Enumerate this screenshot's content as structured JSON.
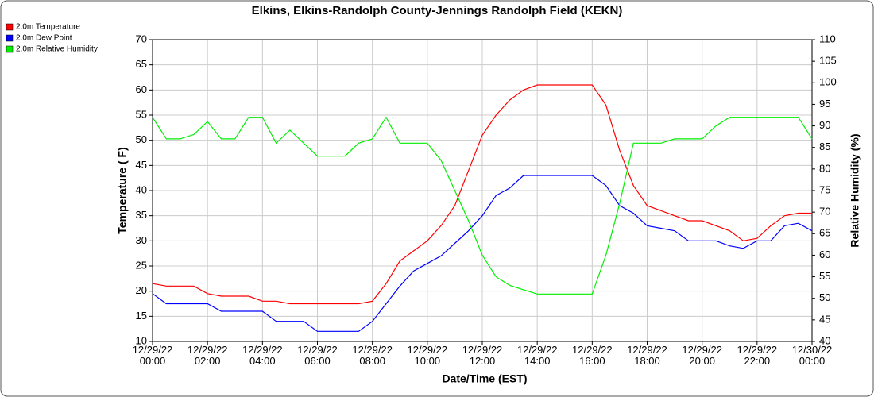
{
  "chart_data": {
    "type": "line",
    "title": "Elkins, Elkins-Randolph County-Jennings Randolph Field (KEKN)",
    "x_label": "Date/Time (EST)",
    "y_label": "Temperature ( F)",
    "y2_label": "Relative Humidity (%)",
    "grid": true,
    "legend": "top-left",
    "xlim": [
      0,
      24
    ],
    "xticks": [
      {
        "value": 0,
        "label": "12/29/22\n00:00"
      },
      {
        "value": 2,
        "label": "12/29/22\n02:00"
      },
      {
        "value": 4,
        "label": "12/29/22\n04:00"
      },
      {
        "value": 6,
        "label": "12/29/22\n06:00"
      },
      {
        "value": 8,
        "label": "12/29/22\n08:00"
      },
      {
        "value": 10,
        "label": "12/29/22\n10:00"
      },
      {
        "value": 12,
        "label": "12/29/22\n12:00"
      },
      {
        "value": 14,
        "label": "12/29/22\n14:00"
      },
      {
        "value": 16,
        "label": "12/29/22\n16:00"
      },
      {
        "value": 18,
        "label": "12/29/22\n18:00"
      },
      {
        "value": 20,
        "label": "12/29/22\n20:00"
      },
      {
        "value": 22,
        "label": "12/29/22\n22:00"
      },
      {
        "value": 24,
        "label": "12/30/22\n00:00"
      }
    ],
    "ylim": [
      10,
      70
    ],
    "yticks": [
      10,
      15,
      20,
      25,
      30,
      35,
      40,
      45,
      50,
      55,
      60,
      65,
      70
    ],
    "y2lim": [
      40,
      110
    ],
    "y2ticks": [
      40,
      45,
      50,
      55,
      60,
      65,
      70,
      75,
      80,
      85,
      90,
      95,
      100,
      105,
      110
    ],
    "x": [
      0,
      0.5,
      1,
      1.5,
      2,
      2.5,
      3,
      3.5,
      4,
      4.5,
      5,
      5.5,
      6,
      6.5,
      7,
      7.5,
      8,
      8.5,
      9,
      9.5,
      10,
      10.5,
      11,
      11.5,
      12,
      12.5,
      13,
      13.5,
      14,
      14.5,
      15,
      15.5,
      16,
      16.5,
      17,
      17.5,
      18,
      18.5,
      19,
      19.5,
      20,
      20.5,
      21,
      21.5,
      22,
      22.5,
      23,
      23.5,
      24
    ],
    "series": [
      {
        "name": "2.0m Temperature",
        "color": "#ff0000",
        "values": [
          21.5,
          21,
          21,
          21,
          19.5,
          19,
          19,
          19,
          18,
          18,
          17.5,
          17.5,
          17.5,
          17.5,
          17.5,
          17.5,
          18,
          21.5,
          26,
          28,
          30,
          33,
          37,
          44,
          51,
          55,
          58,
          60,
          61,
          61,
          61,
          61,
          61,
          57,
          48,
          41,
          37,
          36,
          35,
          34,
          34,
          33,
          32,
          30,
          30.5,
          33,
          35,
          35.5,
          35.5
        ]
      },
      {
        "name": "2.0m Dew Point",
        "color": "#0000ff",
        "values": [
          19.5,
          17.5,
          17.5,
          17.5,
          17.5,
          16,
          16,
          16,
          16,
          14,
          14,
          14,
          12,
          12,
          12,
          12,
          14,
          17.5,
          21,
          24,
          25.5,
          27,
          29.5,
          32,
          35,
          39,
          40.5,
          43,
          43,
          43,
          43,
          43,
          43,
          41,
          37,
          35.5,
          33,
          32.5,
          32,
          30,
          30,
          30,
          29,
          28.5,
          30,
          30,
          33,
          33.5,
          32
        ]
      },
      {
        "name": "2.0m Relative Humidity",
        "color": "#00ee00",
        "axis": "y2",
        "values": [
          92,
          87,
          87,
          88,
          91,
          87,
          87,
          92,
          92,
          86,
          89,
          86,
          83,
          83,
          83,
          86,
          87,
          92,
          86,
          86,
          86,
          82,
          75,
          68,
          60,
          55,
          53,
          52,
          51,
          51,
          51,
          51,
          51,
          60,
          72,
          86,
          86,
          86,
          87,
          87,
          87,
          90,
          92,
          92,
          92,
          92,
          92,
          92,
          87
        ]
      }
    ]
  }
}
